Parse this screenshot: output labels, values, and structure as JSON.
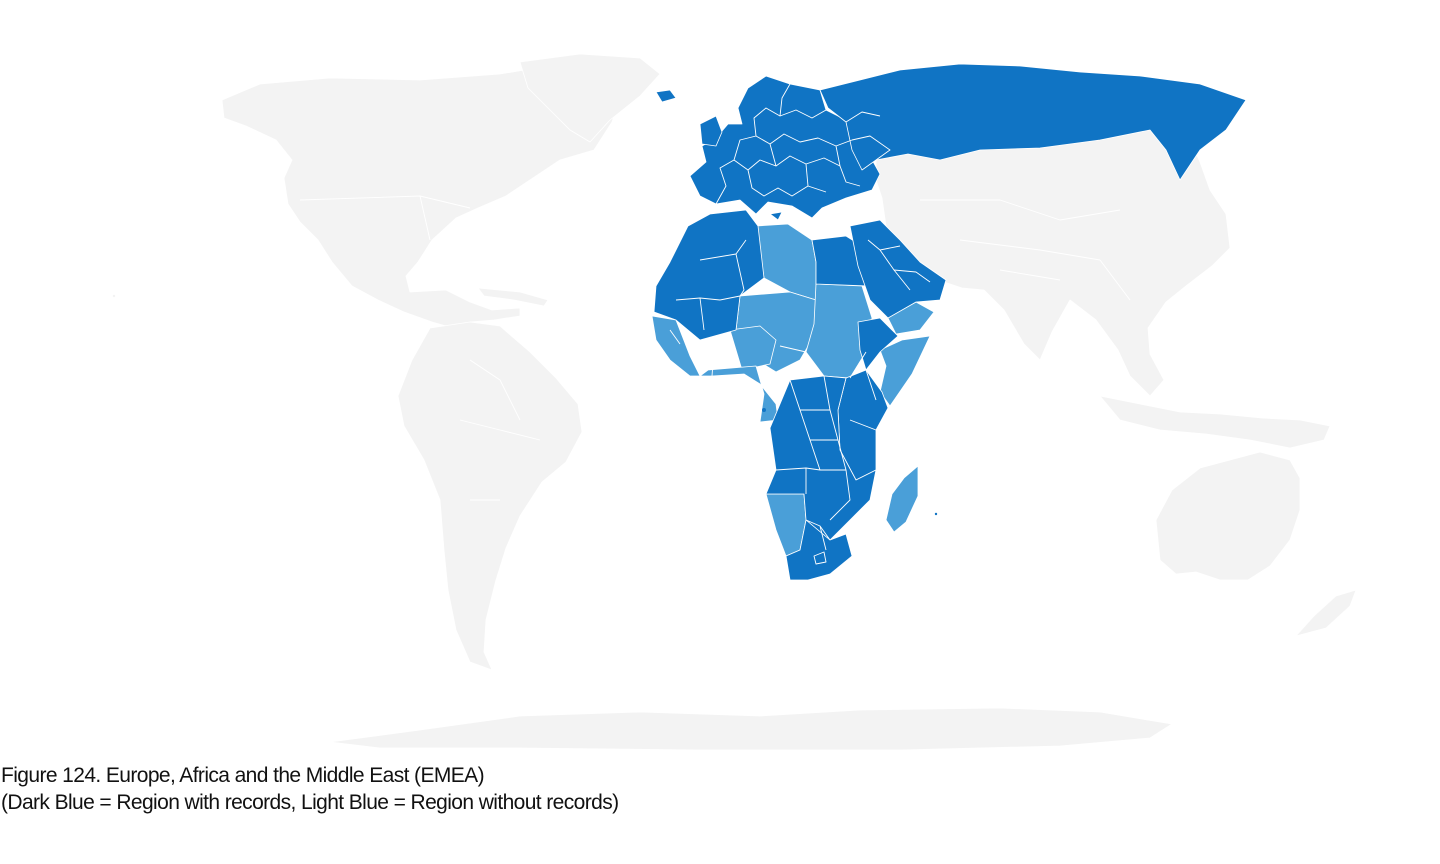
{
  "figure": {
    "caption_line1": "Figure 124. Europe, Africa and the Middle East (EMEA)",
    "caption_line2": "(Dark Blue = Region with records, Light Blue = Region without records)"
  },
  "legend": {
    "with_records_color": "#1074c4",
    "without_records_color": "#4a9fd8",
    "other_land_color": "#f3f3f3",
    "border_color": "#ffffff"
  },
  "regions": [
    {
      "id": "north-america",
      "status": "outside"
    },
    {
      "id": "greenland",
      "status": "outside"
    },
    {
      "id": "south-america",
      "status": "outside"
    },
    {
      "id": "asia",
      "status": "outside"
    },
    {
      "id": "australia",
      "status": "outside"
    },
    {
      "id": "antarctica",
      "status": "outside"
    },
    {
      "id": "europe",
      "status": "with-records"
    },
    {
      "id": "russia",
      "status": "with-records"
    },
    {
      "id": "north-africa",
      "status": "with-records"
    },
    {
      "id": "west-africa",
      "status": "with-records"
    },
    {
      "id": "middle-east",
      "status": "with-records"
    },
    {
      "id": "east-africa",
      "status": "with-records"
    },
    {
      "id": "central-southern-africa",
      "status": "with-records"
    },
    {
      "id": "south-africa",
      "status": "with-records"
    },
    {
      "id": "libya",
      "status": "without-records"
    },
    {
      "id": "sahel",
      "status": "without-records"
    },
    {
      "id": "sudan",
      "status": "without-records"
    },
    {
      "id": "nigeria",
      "status": "without-records"
    },
    {
      "id": "gulf-of-guinea",
      "status": "without-records"
    },
    {
      "id": "yemen",
      "status": "without-records"
    },
    {
      "id": "namibia",
      "status": "without-records"
    },
    {
      "id": "madagascar",
      "status": "without-records"
    }
  ]
}
